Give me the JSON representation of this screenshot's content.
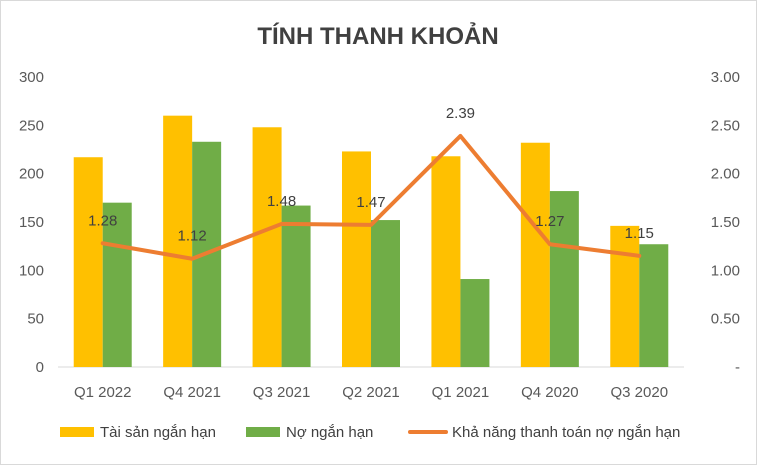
{
  "chart_data": {
    "type": "bar",
    "title": "TÍNH THANH KHOẢN",
    "categories": [
      "Q1 2022",
      "Q4 2021",
      "Q3 2021",
      "Q2 2021",
      "Q1 2021",
      "Q4 2020",
      "Q3 2020"
    ],
    "series": [
      {
        "name": "Tài sản ngắn hạn",
        "type": "bar",
        "axis": "left",
        "color": "#FFC000",
        "values": [
          217,
          260,
          248,
          223,
          218,
          232,
          146
        ]
      },
      {
        "name": "Nợ ngắn hạn",
        "type": "bar",
        "axis": "left",
        "color": "#70AD47",
        "values": [
          170,
          233,
          167,
          152,
          91,
          182,
          127
        ]
      },
      {
        "name": "Khả năng thanh toán nợ ngắn hạn",
        "type": "line",
        "axis": "right",
        "color": "#ED7D31",
        "values": [
          1.28,
          1.12,
          1.48,
          1.47,
          2.39,
          1.27,
          1.15
        ],
        "labels": [
          "1.28",
          "1.12",
          "1.48",
          "1.47",
          "2.39",
          "1.27",
          "1.15"
        ]
      }
    ],
    "ylim": [
      0,
      300
    ],
    "y2lim": [
      0,
      3.0
    ],
    "yticks": [
      "0",
      "50",
      "100",
      "150",
      "200",
      "250",
      "300"
    ],
    "y2ticks": [
      "-",
      "0.50",
      "1.00",
      "1.50",
      "2.00",
      "2.50",
      "3.00"
    ],
    "grid": false,
    "legend": "bottom"
  }
}
